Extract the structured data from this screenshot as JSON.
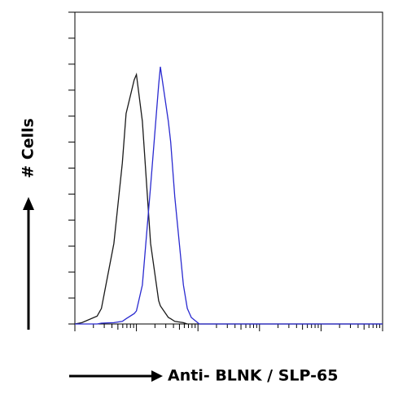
{
  "chart_data": {
    "type": "line",
    "y_label": "# Cells",
    "x_label": "Anti- BLNK / SLP-65",
    "x_scale": "log",
    "x": [
      1,
      1.3,
      2.3,
      2.7,
      4.3,
      5.9,
      6.8,
      9.2,
      10,
      12.5,
      17,
      23,
      24.5,
      33,
      36,
      42,
      58,
      67,
      78,
      105,
      1000,
      100000
    ],
    "series": [
      {
        "color": "#1a1a1a",
        "values": [
          0,
          0.5,
          3,
          6,
          31,
          62,
          81,
          94,
          96,
          78,
          31,
          9,
          7,
          2.5,
          2,
          1,
          0.5,
          0,
          0,
          0,
          0,
          0
        ]
      },
      {
        "color": "#2a2ad0",
        "values": [
          0,
          0,
          0,
          0.3,
          0.5,
          1,
          2,
          4,
          5,
          15,
          53,
          92,
          99,
          78,
          70,
          49,
          15,
          6,
          2.5,
          0,
          0,
          0
        ]
      }
    ],
    "xlim": [
      1,
      100000
    ],
    "xticks": [
      1,
      10,
      100,
      1000,
      10000,
      100000
    ],
    "ylim": [
      0,
      120
    ],
    "yticks": [
      0,
      10,
      20,
      30,
      40,
      50,
      60,
      70,
      80,
      90,
      100,
      110,
      120
    ]
  }
}
